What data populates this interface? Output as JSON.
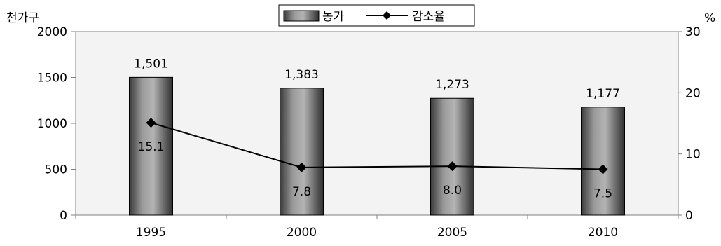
{
  "chart_data": {
    "type": "bar",
    "categories": [
      "1995",
      "2000",
      "2005",
      "2010"
    ],
    "series": [
      {
        "name": "농가",
        "type": "bar",
        "axis": "left",
        "values": [
          1501,
          1383,
          1273,
          1177
        ],
        "labels": [
          "1,501",
          "1,383",
          "1,273",
          "1,177"
        ]
      },
      {
        "name": "감소율",
        "type": "line",
        "axis": "right",
        "values": [
          15.1,
          7.8,
          8.0,
          7.5
        ],
        "labels": [
          "15.1",
          "7.8",
          "8.0",
          "7.5"
        ]
      }
    ],
    "y_left": {
      "unit": "천가구",
      "range": [
        0,
        2000
      ],
      "ticks": [
        "0",
        "500",
        "1000",
        "1500",
        "2000"
      ]
    },
    "y_right": {
      "unit": "%",
      "range": [
        0,
        30
      ],
      "ticks": [
        "0",
        "10",
        "20",
        "30"
      ]
    },
    "legend": {
      "position": "top-center",
      "entries": [
        "농가",
        "감소율"
      ]
    },
    "grid": false,
    "plot_background": "#f3f3f3",
    "bar_color": "#7a7a7a",
    "line_color": "#000000"
  }
}
